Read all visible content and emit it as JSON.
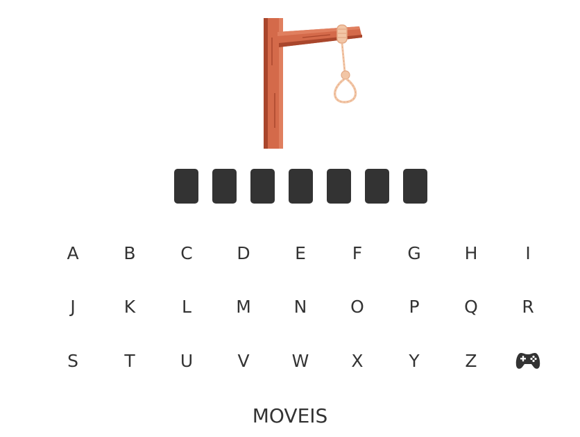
{
  "game": {
    "title": "",
    "category": "MOVEIS",
    "hidden_word_length": 7,
    "revealed_letters": [
      "",
      "",
      "",
      "",
      "",
      "",
      ""
    ],
    "colors": {
      "tile": "#333333",
      "text": "#333333",
      "wood": "#d46a4a",
      "wood_dark": "#a9462c",
      "rope": "#f2c6a6"
    }
  },
  "keyboard": {
    "keys": [
      "A",
      "B",
      "C",
      "D",
      "E",
      "F",
      "G",
      "H",
      "I",
      "J",
      "K",
      "L",
      "M",
      "N",
      "O",
      "P",
      "Q",
      "R",
      "S",
      "T",
      "U",
      "V",
      "W",
      "X",
      "Y",
      "Z"
    ],
    "extra_icon": "gamepad-icon"
  }
}
